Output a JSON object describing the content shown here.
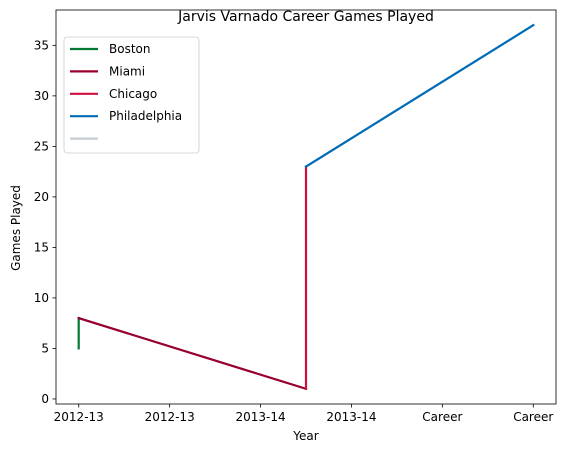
{
  "chart_data": {
    "type": "line",
    "title": "Jarvis Varnado Career Games Played",
    "xlabel": "Year",
    "ylabel": "Games Played",
    "x_tick_labels": [
      "2012-13",
      "2012-13",
      "2013-14",
      "2013-14",
      "Career",
      "Career"
    ],
    "xlim": [
      -0.25,
      5.25
    ],
    "ylim": [
      -0.5,
      38.5
    ],
    "y_ticks": [
      0,
      5,
      10,
      15,
      20,
      25,
      30,
      35
    ],
    "grid": false,
    "legend_position": "top-left",
    "series": [
      {
        "name": "Boston",
        "color": "#007a33",
        "points": [
          [
            0,
            5
          ],
          [
            0,
            8
          ]
        ]
      },
      {
        "name": "Miami",
        "color": "#98002e",
        "points": [
          [
            0,
            8
          ],
          [
            2.5,
            1
          ]
        ]
      },
      {
        "name": "Chicago",
        "color": "#ce1141",
        "points": [
          [
            2.5,
            1
          ],
          [
            2.5,
            23
          ]
        ]
      },
      {
        "name": "Philadelphia",
        "color": "#006bb6",
        "points": [
          [
            2.5,
            23
          ],
          [
            5,
            37
          ]
        ]
      },
      {
        "name": "",
        "color": "#c4ced4",
        "points": []
      }
    ]
  }
}
